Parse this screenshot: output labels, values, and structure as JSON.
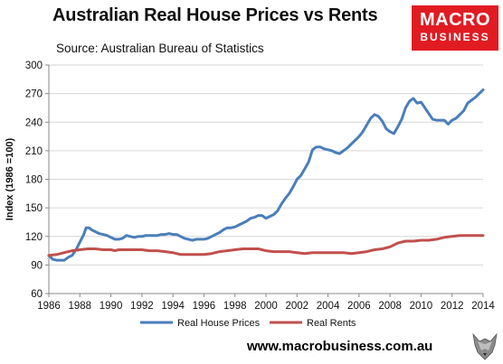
{
  "header": {
    "title": "Australian Real House Prices vs Rents",
    "subtitle": "Source: Australian Bureau of Statistics"
  },
  "logo": {
    "line1": "MACRO",
    "line2": "BUSINESS",
    "color": "#e11b22"
  },
  "footer": {
    "url": "www.macrobusiness.com.au"
  },
  "chart_data": {
    "type": "line",
    "title": "Australian Real House Prices vs Rents",
    "xlabel": "",
    "ylabel": "Index (1986 =100)",
    "xlim": [
      1986,
      2014
    ],
    "ylim": [
      60,
      300
    ],
    "x_ticks": [
      1986,
      1988,
      1990,
      1992,
      1994,
      1996,
      1998,
      2000,
      2002,
      2004,
      2006,
      2008,
      2010,
      2012,
      2014
    ],
    "y_ticks": [
      60,
      90,
      120,
      150,
      180,
      210,
      240,
      270,
      300
    ],
    "grid": "horizontal",
    "legend": "bottom",
    "series": [
      {
        "name": "Real House Prices",
        "color": "#4a7ebb",
        "points": [
          [
            1986,
            100
          ],
          [
            1986.25,
            96
          ],
          [
            1986.5,
            95
          ],
          [
            1986.75,
            95
          ],
          [
            1987,
            95
          ],
          [
            1987.25,
            98
          ],
          [
            1987.5,
            100
          ],
          [
            1987.75,
            106
          ],
          [
            1988,
            114
          ],
          [
            1988.25,
            122
          ],
          [
            1988.4,
            129
          ],
          [
            1988.6,
            129
          ],
          [
            1988.75,
            127
          ],
          [
            1989,
            125
          ],
          [
            1989.25,
            123
          ],
          [
            1989.5,
            122
          ],
          [
            1989.75,
            121
          ],
          [
            1990,
            119
          ],
          [
            1990.25,
            117
          ],
          [
            1990.5,
            117
          ],
          [
            1990.75,
            118
          ],
          [
            1991,
            121
          ],
          [
            1991.25,
            120
          ],
          [
            1991.5,
            119
          ],
          [
            1991.75,
            120
          ],
          [
            1992,
            120
          ],
          [
            1992.25,
            121
          ],
          [
            1992.5,
            121
          ],
          [
            1992.75,
            121
          ],
          [
            1993,
            121
          ],
          [
            1993.25,
            122
          ],
          [
            1993.5,
            122
          ],
          [
            1993.75,
            123
          ],
          [
            1994,
            122
          ],
          [
            1994.25,
            122
          ],
          [
            1994.5,
            120
          ],
          [
            1994.75,
            118
          ],
          [
            1995,
            117
          ],
          [
            1995.25,
            116
          ],
          [
            1995.5,
            117
          ],
          [
            1995.75,
            117
          ],
          [
            1996,
            117
          ],
          [
            1996.25,
            118
          ],
          [
            1996.5,
            120
          ],
          [
            1996.75,
            122
          ],
          [
            1997,
            124
          ],
          [
            1997.25,
            127
          ],
          [
            1997.5,
            129
          ],
          [
            1997.75,
            129
          ],
          [
            1998,
            130
          ],
          [
            1998.25,
            132
          ],
          [
            1998.5,
            134
          ],
          [
            1998.75,
            136
          ],
          [
            1999,
            139
          ],
          [
            1999.25,
            140
          ],
          [
            1999.5,
            142
          ],
          [
            1999.75,
            142
          ],
          [
            2000,
            139
          ],
          [
            2000.25,
            141
          ],
          [
            2000.5,
            143
          ],
          [
            2000.75,
            147
          ],
          [
            2001,
            154
          ],
          [
            2001.25,
            160
          ],
          [
            2001.5,
            165
          ],
          [
            2001.75,
            172
          ],
          [
            2002,
            180
          ],
          [
            2002.25,
            184
          ],
          [
            2002.5,
            191
          ],
          [
            2002.75,
            198
          ],
          [
            2003,
            211
          ],
          [
            2003.25,
            214
          ],
          [
            2003.5,
            214
          ],
          [
            2003.75,
            212
          ],
          [
            2004,
            211
          ],
          [
            2004.25,
            210
          ],
          [
            2004.5,
            208
          ],
          [
            2004.75,
            207
          ],
          [
            2005,
            210
          ],
          [
            2005.25,
            213
          ],
          [
            2005.5,
            217
          ],
          [
            2005.75,
            221
          ],
          [
            2006,
            225
          ],
          [
            2006.25,
            230
          ],
          [
            2006.5,
            237
          ],
          [
            2006.75,
            244
          ],
          [
            2007,
            248
          ],
          [
            2007.25,
            246
          ],
          [
            2007.5,
            241
          ],
          [
            2007.75,
            233
          ],
          [
            2008,
            230
          ],
          [
            2008.25,
            228
          ],
          [
            2008.5,
            235
          ],
          [
            2008.75,
            243
          ],
          [
            2009,
            255
          ],
          [
            2009.25,
            262
          ],
          [
            2009.5,
            265
          ],
          [
            2009.75,
            260
          ],
          [
            2010,
            261
          ],
          [
            2010.25,
            255
          ],
          [
            2010.5,
            249
          ],
          [
            2010.75,
            243
          ],
          [
            2011,
            242
          ],
          [
            2011.25,
            242
          ],
          [
            2011.5,
            242
          ],
          [
            2011.75,
            238
          ],
          [
            2012,
            242
          ],
          [
            2012.25,
            244
          ],
          [
            2012.5,
            248
          ],
          [
            2012.75,
            252
          ],
          [
            2013,
            260
          ],
          [
            2013.25,
            263
          ],
          [
            2013.5,
            266
          ],
          [
            2013.75,
            270
          ],
          [
            2014,
            274
          ]
        ]
      },
      {
        "name": "Real Rents",
        "color": "#c0504d",
        "points": [
          [
            1986,
            100
          ],
          [
            1986.5,
            101
          ],
          [
            1987,
            103
          ],
          [
            1987.5,
            105
          ],
          [
            1988,
            106
          ],
          [
            1988.5,
            107
          ],
          [
            1989,
            107
          ],
          [
            1989.5,
            106
          ],
          [
            1990,
            106
          ],
          [
            1990.25,
            105
          ],
          [
            1990.5,
            106
          ],
          [
            1991,
            106
          ],
          [
            1991.5,
            106
          ],
          [
            1992,
            106
          ],
          [
            1992.5,
            105
          ],
          [
            1993,
            105
          ],
          [
            1993.5,
            104
          ],
          [
            1994,
            103
          ],
          [
            1994.5,
            101
          ],
          [
            1995,
            101
          ],
          [
            1995.5,
            101
          ],
          [
            1996,
            101
          ],
          [
            1996.5,
            102
          ],
          [
            1997,
            104
          ],
          [
            1997.5,
            105
          ],
          [
            1998,
            106
          ],
          [
            1998.5,
            107
          ],
          [
            1999,
            107
          ],
          [
            1999.5,
            107
          ],
          [
            2000,
            105
          ],
          [
            2000.5,
            104
          ],
          [
            2001,
            104
          ],
          [
            2001.5,
            104
          ],
          [
            2002,
            103
          ],
          [
            2002.5,
            102
          ],
          [
            2003,
            103
          ],
          [
            2003.5,
            103
          ],
          [
            2004,
            103
          ],
          [
            2004.5,
            103
          ],
          [
            2005,
            103
          ],
          [
            2005.5,
            102
          ],
          [
            2006,
            103
          ],
          [
            2006.5,
            104
          ],
          [
            2007,
            106
          ],
          [
            2007.5,
            107
          ],
          [
            2008,
            109
          ],
          [
            2008.5,
            113
          ],
          [
            2009,
            115
          ],
          [
            2009.5,
            115
          ],
          [
            2010,
            116
          ],
          [
            2010.5,
            116
          ],
          [
            2011,
            117
          ],
          [
            2011.5,
            119
          ],
          [
            2012,
            120
          ],
          [
            2012.5,
            121
          ],
          [
            2013,
            121
          ],
          [
            2013.5,
            121
          ],
          [
            2014,
            121
          ]
        ]
      }
    ]
  }
}
